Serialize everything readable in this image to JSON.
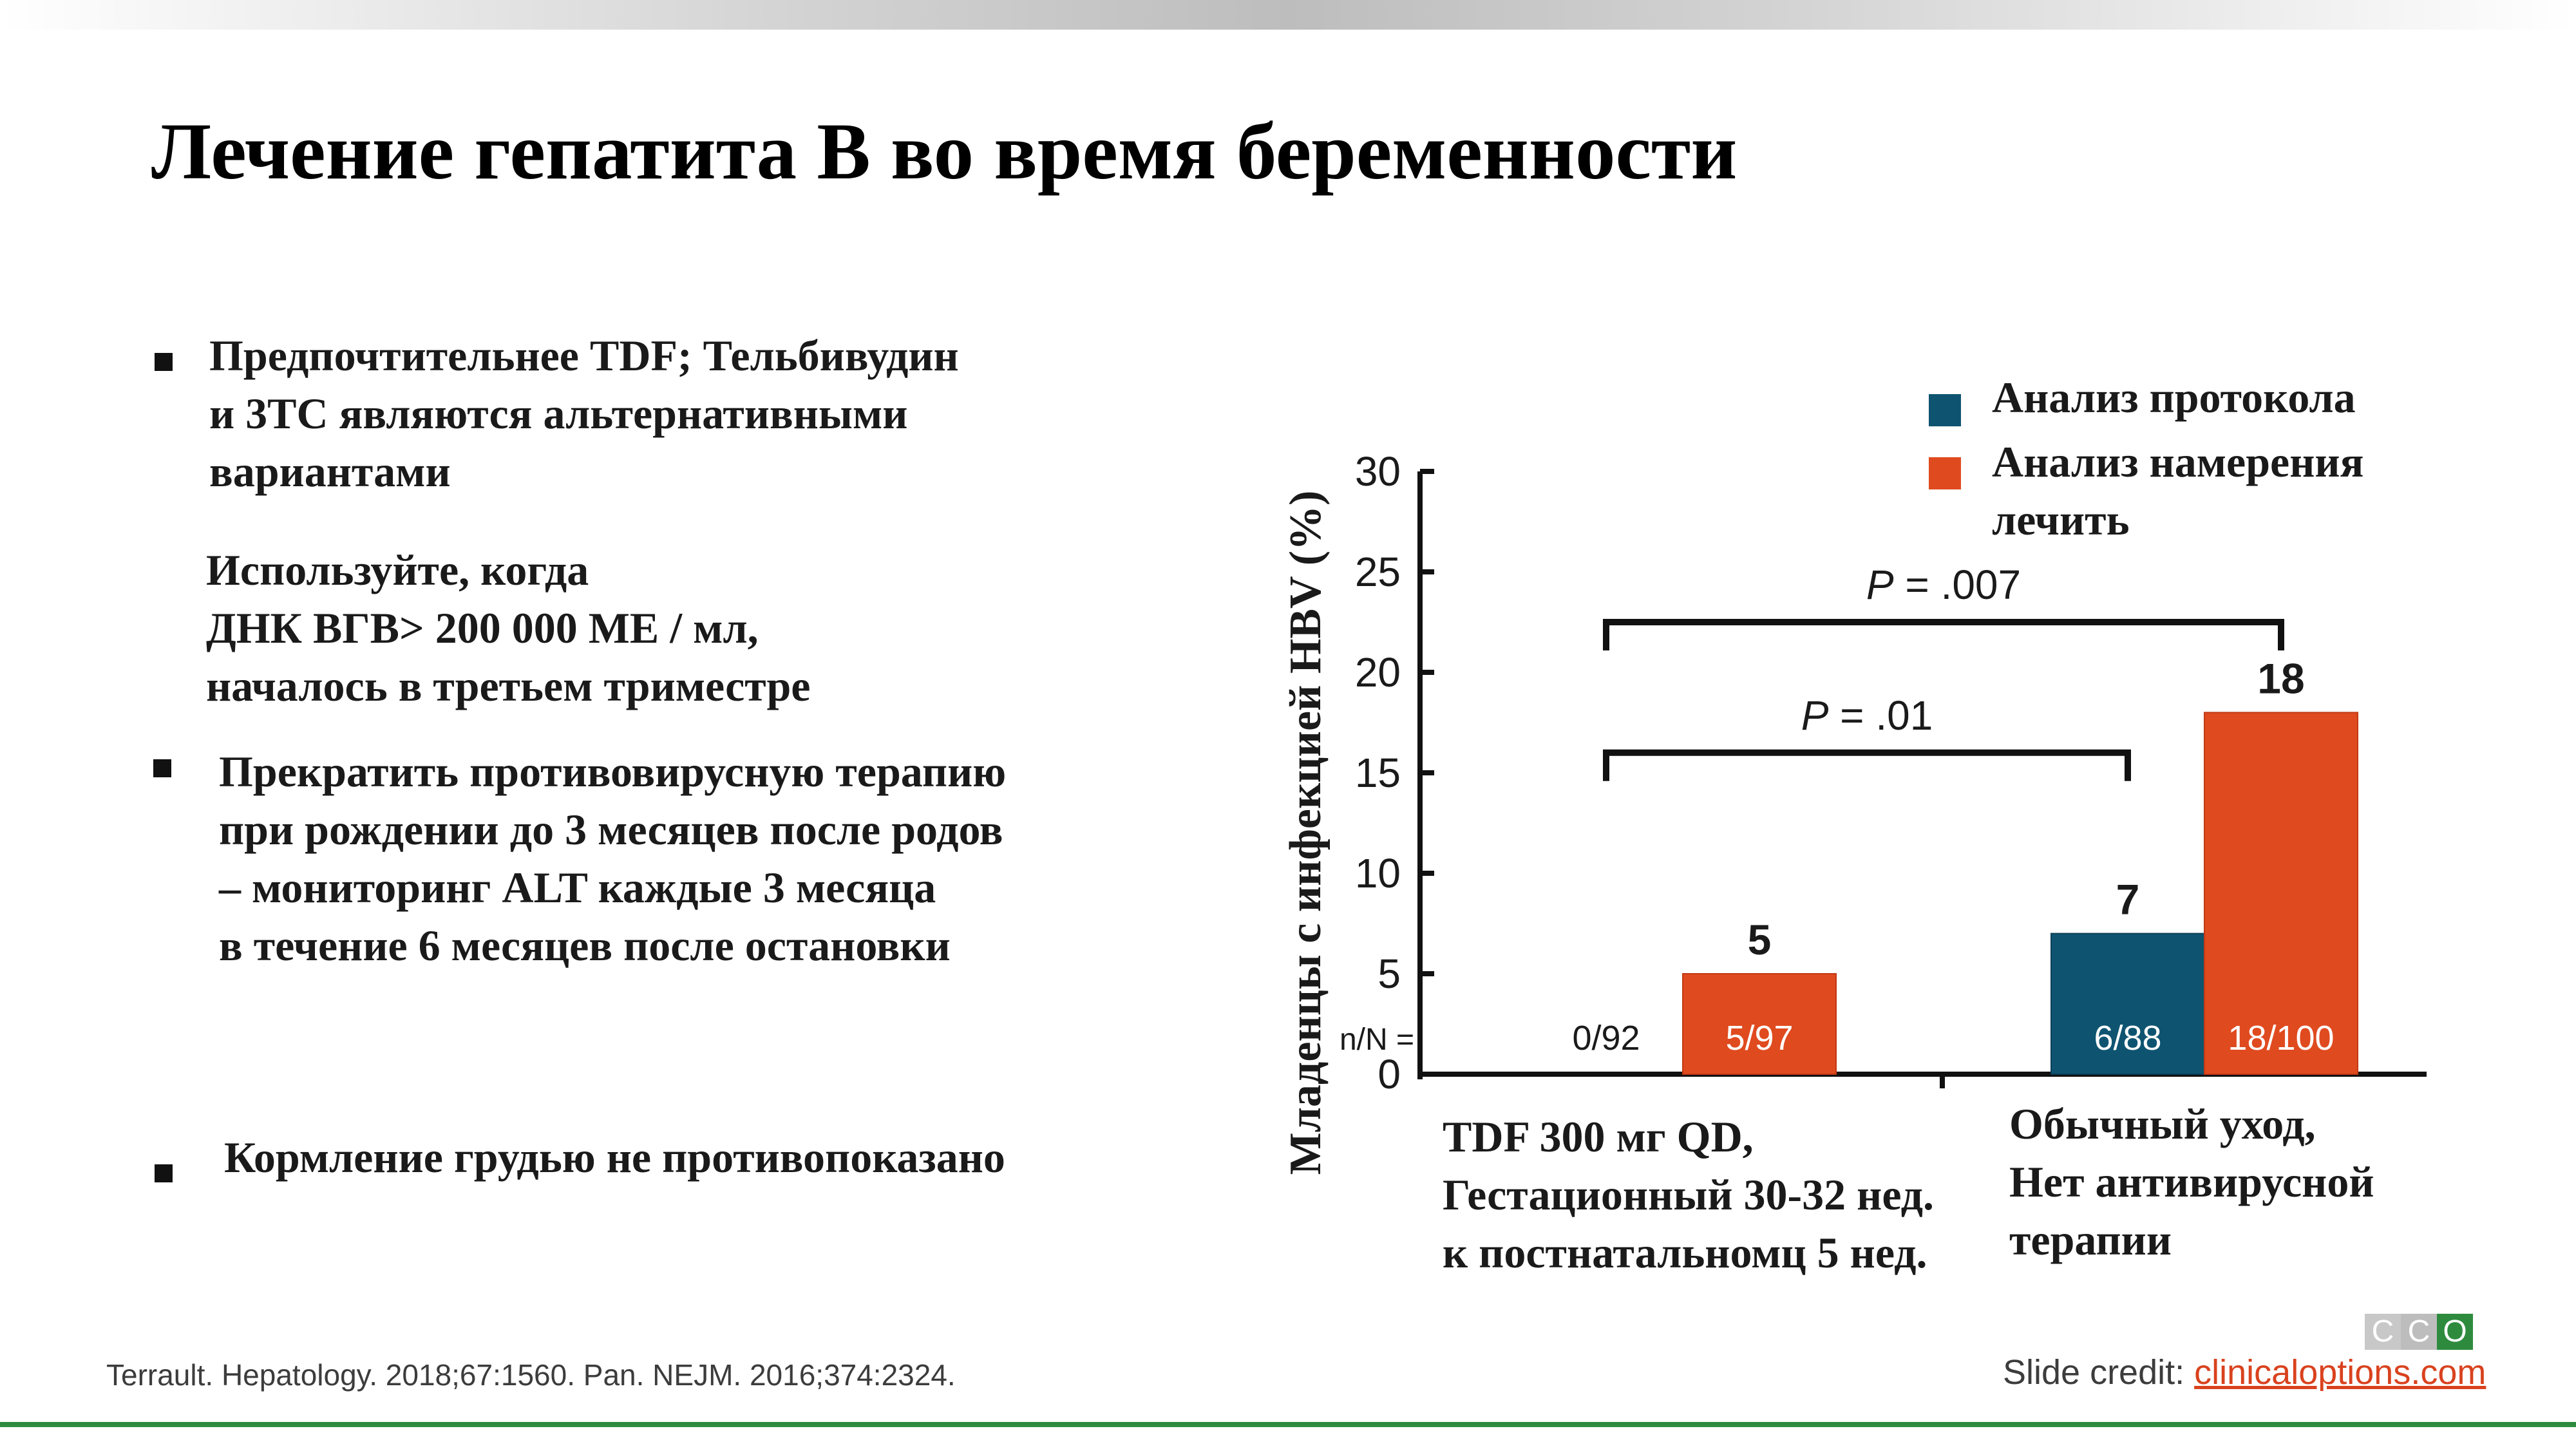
{
  "title": "Лечение гепатита B во время беременности",
  "bullets": [
    {
      "lines": [
        "Предпочтительнее TDF; Тельбивудин",
        "и 3TC являются альтернативными",
        "вариантами"
      ]
    },
    {
      "lines": [
        "Используйте, когда",
        "ДНК ВГВ> 200 000 МЕ / мл,",
        "началось в третьем триместре"
      ]
    },
    {
      "lines": [
        "Прекратить противовирусную терапию",
        "при рождении до 3 месяцев после родов",
        "– мониторинг ALT каждые 3 месяца",
        "в течение 6 месяцев после остановки"
      ]
    },
    {
      "lines": [
        "Кормление грудью не противопоказано"
      ]
    }
  ],
  "footer": {
    "reference": "Terrault. Hepatology. 2018;67:1560. Pan. NEJM. 2016;374:2324.",
    "credit_label": "Slide credit: ",
    "credit_link": "clinicaloptions.com",
    "logo_letters": [
      "C",
      "C",
      "O"
    ]
  },
  "colors": {
    "per_protocol": "#0e5471",
    "intention_to_treat": "#e04a1f",
    "green": "#2e8b3e"
  },
  "chart_data": {
    "type": "bar",
    "ylabel": "Младенцы с инфекцией HBV (%)",
    "ylim": [
      0,
      30
    ],
    "yticks": [
      0,
      5,
      10,
      15,
      20,
      25,
      30
    ],
    "nLabelPrefix": "n/N =",
    "categories": [
      {
        "lines": [
          "TDF 300 мг QD,",
          "Гестационный 30-32 нед.",
          "к постнатальномц 5 нед."
        ]
      },
      {
        "lines": [
          "Обычный уход,",
          "Нет антивирусной",
          "терапии"
        ]
      }
    ],
    "series": [
      {
        "name": "Анализ протокола",
        "color": "#0e5471",
        "values": [
          0,
          7
        ],
        "valueLabels": [
          "",
          "7"
        ],
        "nLabels": [
          "0/92",
          "6/88"
        ]
      },
      {
        "name": "Анализ намерения лечить",
        "color": "#e04a1f",
        "values": [
          5,
          18
        ],
        "valueLabels": [
          "5",
          "18"
        ],
        "nLabels": [
          "5/97",
          "18/100"
        ]
      }
    ],
    "legend": {
      "position": "top-right",
      "items": [
        [
          "Анализ протокола"
        ],
        [
          "Анализ намерения",
          "лечить"
        ]
      ]
    },
    "annotations": [
      {
        "p": "P",
        "text": " = .01",
        "from": "series0-cat0",
        "to": "series0-cat1",
        "level": 16
      },
      {
        "p": "P",
        "text": " = .007",
        "from": "series0-cat0",
        "to": "series1-cat1",
        "level": 22.5
      }
    ]
  }
}
